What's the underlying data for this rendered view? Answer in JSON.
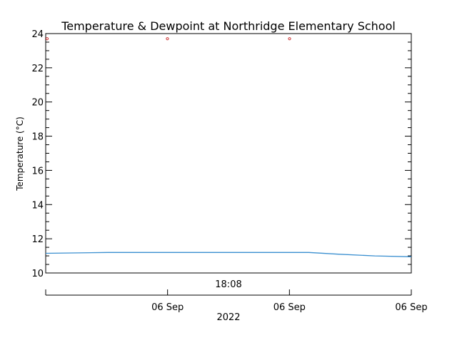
{
  "chart_data": {
    "type": "line",
    "title": "Temperature & Dewpoint at Northridge Elementary School",
    "ylabel": "Temperature (°C)",
    "ylim": [
      10,
      24
    ],
    "yticks": [
      "10",
      "12",
      "14",
      "16",
      "18",
      "20",
      "22",
      "24"
    ],
    "grid": false,
    "time_label": "18:08",
    "date_ticks": [
      "06 Sep",
      "06 Sep",
      "06 Sep"
    ],
    "year_label": "2022",
    "series": [
      {
        "type": "line",
        "color": "#3a8fd0",
        "x": [
          0,
          0.17,
          0.72,
          0.8,
          0.9,
          1.0
        ],
        "y": [
          11.15,
          11.2,
          11.2,
          11.1,
          11.0,
          10.95
        ]
      },
      {
        "type": "scatter",
        "color": "#cc3333",
        "x": [
          0.0,
          0.333,
          0.667
        ],
        "y": [
          23.7,
          23.7,
          23.7
        ]
      }
    ]
  }
}
